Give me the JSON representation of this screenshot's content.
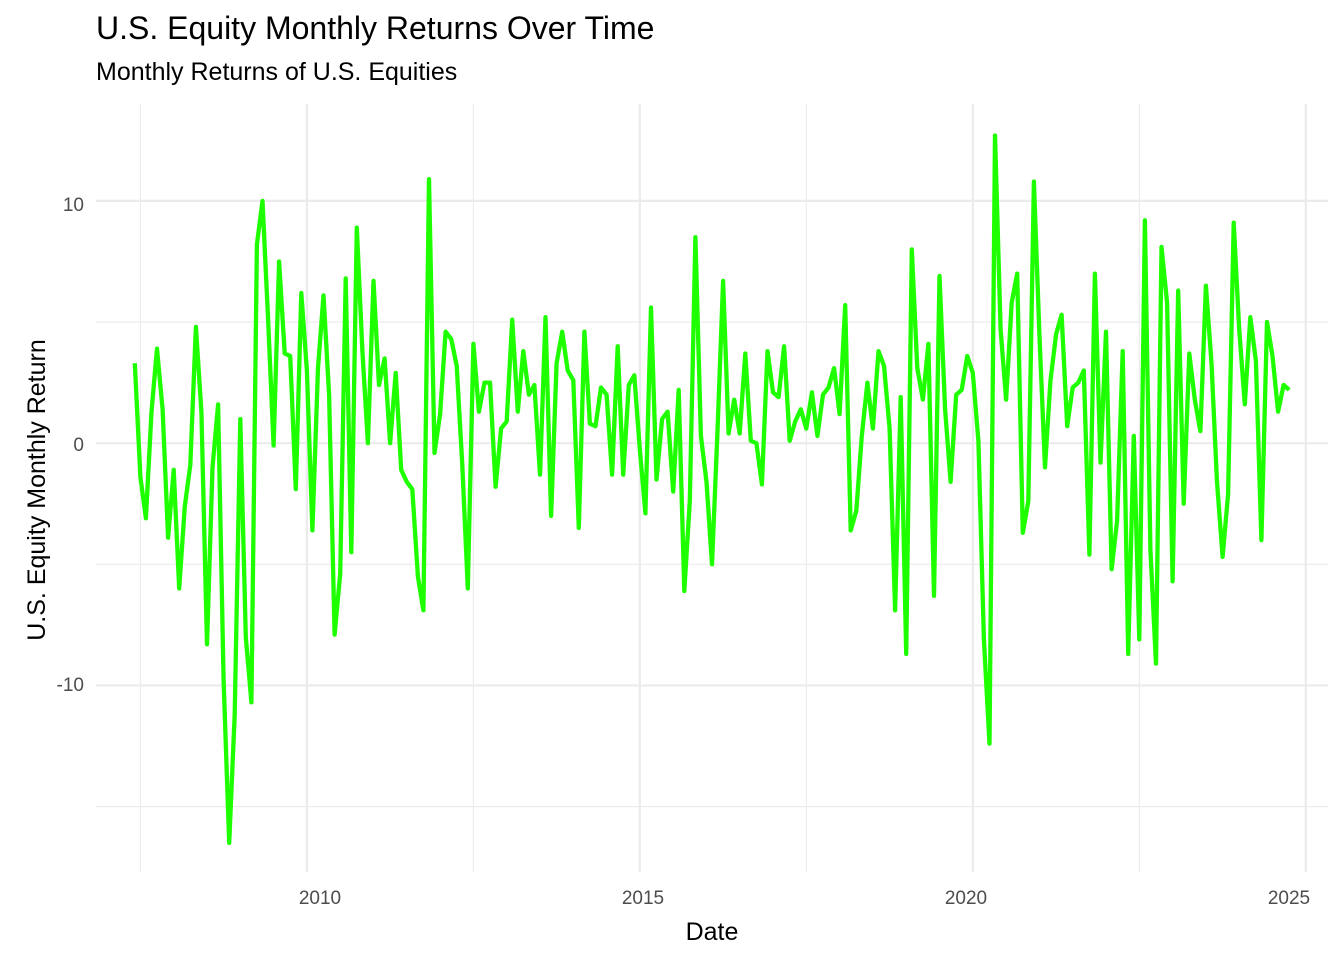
{
  "chart_data": {
    "type": "line",
    "title": "U.S. Equity Monthly Returns Over Time",
    "subtitle": "Monthly Returns of U.S. Equities",
    "xlabel": "Date",
    "ylabel": "U.S. Equity Monthly Return",
    "x_ticks": [
      "2010",
      "2015",
      "2020",
      "2025"
    ],
    "y_ticks": [
      "-10",
      "0",
      "10"
    ],
    "xlim": [
      "2006-11-01",
      "2025-05-01"
    ],
    "ylim": [
      -17.7,
      14.0
    ],
    "grid": true,
    "line_color": "#1eff00",
    "series": [
      {
        "values": [
          {
            "x": "2007-06",
            "y": 3.3
          },
          {
            "x": "2007-07",
            "y": -1.4
          },
          {
            "x": "2007-08",
            "y": -3.1
          },
          {
            "x": "2007-09",
            "y": 1.3
          },
          {
            "x": "2007-10",
            "y": 3.9
          },
          {
            "x": "2007-11",
            "y": 1.4
          },
          {
            "x": "2007-12",
            "y": -3.9
          },
          {
            "x": "2008-01",
            "y": -1.1
          },
          {
            "x": "2008-02",
            "y": -6.0
          },
          {
            "x": "2008-03",
            "y": -2.6
          },
          {
            "x": "2008-04",
            "y": -0.9
          },
          {
            "x": "2008-05",
            "y": 4.8
          },
          {
            "x": "2008-06",
            "y": 1.3
          },
          {
            "x": "2008-07",
            "y": -8.3
          },
          {
            "x": "2008-08",
            "y": -1.0
          },
          {
            "x": "2008-09",
            "y": 1.6
          },
          {
            "x": "2008-10",
            "y": -9.8
          },
          {
            "x": "2008-11",
            "y": -16.5
          },
          {
            "x": "2008-12",
            "y": -11.2
          },
          {
            "x": "2009-01",
            "y": 1.0
          },
          {
            "x": "2009-02",
            "y": -8.0
          },
          {
            "x": "2009-03",
            "y": -10.7
          },
          {
            "x": "2009-04",
            "y": 8.2
          },
          {
            "x": "2009-05",
            "y": 10.0
          },
          {
            "x": "2009-06",
            "y": 5.2
          },
          {
            "x": "2009-07",
            "y": -0.1
          },
          {
            "x": "2009-08",
            "y": 7.5
          },
          {
            "x": "2009-09",
            "y": 3.7
          },
          {
            "x": "2009-10",
            "y": 3.6
          },
          {
            "x": "2009-11",
            "y": -1.9
          },
          {
            "x": "2009-12",
            "y": 6.2
          },
          {
            "x": "2010-01",
            "y": 3.0
          },
          {
            "x": "2010-02",
            "y": -3.6
          },
          {
            "x": "2010-03",
            "y": 3.1
          },
          {
            "x": "2010-04",
            "y": 6.1
          },
          {
            "x": "2010-05",
            "y": 2.0
          },
          {
            "x": "2010-06",
            "y": -7.9
          },
          {
            "x": "2010-07",
            "y": -5.4
          },
          {
            "x": "2010-08",
            "y": 6.8
          },
          {
            "x": "2010-09",
            "y": -4.5
          },
          {
            "x": "2010-10",
            "y": 8.9
          },
          {
            "x": "2010-11",
            "y": 3.8
          },
          {
            "x": "2010-12",
            "y": 0.0
          },
          {
            "x": "2011-01",
            "y": 6.7
          },
          {
            "x": "2011-02",
            "y": 2.4
          },
          {
            "x": "2011-03",
            "y": 3.5
          },
          {
            "x": "2011-04",
            "y": 0.0
          },
          {
            "x": "2011-05",
            "y": 2.9
          },
          {
            "x": "2011-06",
            "y": -1.1
          },
          {
            "x": "2011-07",
            "y": -1.6
          },
          {
            "x": "2011-08",
            "y": -1.9
          },
          {
            "x": "2011-09",
            "y": -5.5
          },
          {
            "x": "2011-10",
            "y": -6.9
          },
          {
            "x": "2011-11",
            "y": 10.9
          },
          {
            "x": "2011-12",
            "y": -0.4
          },
          {
            "x": "2012-01",
            "y": 1.2
          },
          {
            "x": "2012-02",
            "y": 4.6
          },
          {
            "x": "2012-03",
            "y": 4.3
          },
          {
            "x": "2012-04",
            "y": 3.2
          },
          {
            "x": "2012-05",
            "y": -0.9
          },
          {
            "x": "2012-06",
            "y": -6.0
          },
          {
            "x": "2012-07",
            "y": 4.1
          },
          {
            "x": "2012-08",
            "y": 1.3
          },
          {
            "x": "2012-09",
            "y": 2.5
          },
          {
            "x": "2012-10",
            "y": 2.5
          },
          {
            "x": "2012-11",
            "y": -1.8
          },
          {
            "x": "2012-12",
            "y": 0.6
          },
          {
            "x": "2013-01",
            "y": 0.9
          },
          {
            "x": "2013-02",
            "y": 5.1
          },
          {
            "x": "2013-03",
            "y": 1.3
          },
          {
            "x": "2013-04",
            "y": 3.8
          },
          {
            "x": "2013-05",
            "y": 2.0
          },
          {
            "x": "2013-06",
            "y": 2.4
          },
          {
            "x": "2013-07",
            "y": -1.3
          },
          {
            "x": "2013-08",
            "y": 5.2
          },
          {
            "x": "2013-09",
            "y": -3.0
          },
          {
            "x": "2013-10",
            "y": 3.3
          },
          {
            "x": "2013-11",
            "y": 4.6
          },
          {
            "x": "2013-12",
            "y": 3.0
          },
          {
            "x": "2014-01",
            "y": 2.6
          },
          {
            "x": "2014-02",
            "y": -3.5
          },
          {
            "x": "2014-03",
            "y": 4.6
          },
          {
            "x": "2014-04",
            "y": 0.8
          },
          {
            "x": "2014-05",
            "y": 0.7
          },
          {
            "x": "2014-06",
            "y": 2.3
          },
          {
            "x": "2014-07",
            "y": 2.0
          },
          {
            "x": "2014-08",
            "y": -1.3
          },
          {
            "x": "2014-09",
            "y": 4.0
          },
          {
            "x": "2014-10",
            "y": -1.3
          },
          {
            "x": "2014-11",
            "y": 2.4
          },
          {
            "x": "2014-12",
            "y": 2.8
          },
          {
            "x": "2015-01",
            "y": -0.3
          },
          {
            "x": "2015-02",
            "y": -2.9
          },
          {
            "x": "2015-03",
            "y": 5.6
          },
          {
            "x": "2015-04",
            "y": -1.5
          },
          {
            "x": "2015-05",
            "y": 1.0
          },
          {
            "x": "2015-06",
            "y": 1.3
          },
          {
            "x": "2015-07",
            "y": -2.0
          },
          {
            "x": "2015-08",
            "y": 2.2
          },
          {
            "x": "2015-09",
            "y": -6.1
          },
          {
            "x": "2015-10",
            "y": -2.4
          },
          {
            "x": "2015-11",
            "y": 8.5
          },
          {
            "x": "2015-12",
            "y": 0.3
          },
          {
            "x": "2016-01",
            "y": -1.6
          },
          {
            "x": "2016-02",
            "y": -5.0
          },
          {
            "x": "2016-03",
            "y": 0.5
          },
          {
            "x": "2016-04",
            "y": 6.7
          },
          {
            "x": "2016-05",
            "y": 0.4
          },
          {
            "x": "2016-06",
            "y": 1.8
          },
          {
            "x": "2016-07",
            "y": 0.4
          },
          {
            "x": "2016-08",
            "y": 3.7
          },
          {
            "x": "2016-09",
            "y": 0.1
          },
          {
            "x": "2016-10",
            "y": 0.0
          },
          {
            "x": "2016-11",
            "y": -1.7
          },
          {
            "x": "2016-12",
            "y": 3.8
          },
          {
            "x": "2017-01",
            "y": 2.1
          },
          {
            "x": "2017-02",
            "y": 1.9
          },
          {
            "x": "2017-03",
            "y": 4.0
          },
          {
            "x": "2017-04",
            "y": 0.1
          },
          {
            "x": "2017-05",
            "y": 0.9
          },
          {
            "x": "2017-06",
            "y": 1.4
          },
          {
            "x": "2017-07",
            "y": 0.6
          },
          {
            "x": "2017-08",
            "y": 2.1
          },
          {
            "x": "2017-09",
            "y": 0.3
          },
          {
            "x": "2017-10",
            "y": 2.0
          },
          {
            "x": "2017-11",
            "y": 2.3
          },
          {
            "x": "2017-12",
            "y": 3.1
          },
          {
            "x": "2018-01",
            "y": 1.2
          },
          {
            "x": "2018-02",
            "y": 5.7
          },
          {
            "x": "2018-03",
            "y": -3.6
          },
          {
            "x": "2018-04",
            "y": -2.8
          },
          {
            "x": "2018-05",
            "y": 0.3
          },
          {
            "x": "2018-06",
            "y": 2.5
          },
          {
            "x": "2018-07",
            "y": 0.6
          },
          {
            "x": "2018-08",
            "y": 3.8
          },
          {
            "x": "2018-09",
            "y": 3.2
          },
          {
            "x": "2018-10",
            "y": 0.6
          },
          {
            "x": "2018-11",
            "y": -6.9
          },
          {
            "x": "2018-12",
            "y": 1.9
          },
          {
            "x": "2019-01",
            "y": -8.7
          },
          {
            "x": "2019-02",
            "y": 8.0
          },
          {
            "x": "2019-03",
            "y": 3.1
          },
          {
            "x": "2019-04",
            "y": 1.8
          },
          {
            "x": "2019-05",
            "y": 4.1
          },
          {
            "x": "2019-06",
            "y": -6.3
          },
          {
            "x": "2019-07",
            "y": 6.9
          },
          {
            "x": "2019-08",
            "y": 1.4
          },
          {
            "x": "2019-09",
            "y": -1.6
          },
          {
            "x": "2019-10",
            "y": 2.0
          },
          {
            "x": "2019-11",
            "y": 2.2
          },
          {
            "x": "2019-12",
            "y": 3.6
          },
          {
            "x": "2020-01",
            "y": 2.9
          },
          {
            "x": "2020-02",
            "y": 0.1
          },
          {
            "x": "2020-03",
            "y": -8.1
          },
          {
            "x": "2020-04",
            "y": -12.4
          },
          {
            "x": "2020-05",
            "y": 12.7
          },
          {
            "x": "2020-06",
            "y": 4.7
          },
          {
            "x": "2020-07",
            "y": 1.8
          },
          {
            "x": "2020-08",
            "y": 5.8
          },
          {
            "x": "2020-09",
            "y": 7.0
          },
          {
            "x": "2020-10",
            "y": -3.7
          },
          {
            "x": "2020-11",
            "y": -2.4
          },
          {
            "x": "2020-12",
            "y": 10.8
          },
          {
            "x": "2021-01",
            "y": 4.5
          },
          {
            "x": "2021-02",
            "y": -1.0
          },
          {
            "x": "2021-03",
            "y": 2.6
          },
          {
            "x": "2021-04",
            "y": 4.5
          },
          {
            "x": "2021-05",
            "y": 5.3
          },
          {
            "x": "2021-06",
            "y": 0.7
          },
          {
            "x": "2021-07",
            "y": 2.3
          },
          {
            "x": "2021-08",
            "y": 2.5
          },
          {
            "x": "2021-09",
            "y": 3.0
          },
          {
            "x": "2021-10",
            "y": -4.6
          },
          {
            "x": "2021-11",
            "y": 7.0
          },
          {
            "x": "2021-12",
            "y": -0.8
          },
          {
            "x": "2022-01",
            "y": 4.6
          },
          {
            "x": "2022-02",
            "y": -5.2
          },
          {
            "x": "2022-03",
            "y": -3.2
          },
          {
            "x": "2022-04",
            "y": 3.8
          },
          {
            "x": "2022-05",
            "y": -8.7
          },
          {
            "x": "2022-06",
            "y": 0.3
          },
          {
            "x": "2022-07",
            "y": -8.1
          },
          {
            "x": "2022-08",
            "y": 9.2
          },
          {
            "x": "2022-09",
            "y": -4.4
          },
          {
            "x": "2022-10",
            "y": -9.1
          },
          {
            "x": "2022-11",
            "y": 8.1
          },
          {
            "x": "2022-12",
            "y": 5.8
          },
          {
            "x": "2023-01",
            "y": -5.7
          },
          {
            "x": "2023-02",
            "y": 6.3
          },
          {
            "x": "2023-03",
            "y": -2.5
          },
          {
            "x": "2023-04",
            "y": 3.7
          },
          {
            "x": "2023-05",
            "y": 1.8
          },
          {
            "x": "2023-06",
            "y": 0.5
          },
          {
            "x": "2023-07",
            "y": 6.5
          },
          {
            "x": "2023-08",
            "y": 3.3
          },
          {
            "x": "2023-09",
            "y": -1.6
          },
          {
            "x": "2023-10",
            "y": -4.7
          },
          {
            "x": "2023-11",
            "y": -2.1
          },
          {
            "x": "2023-12",
            "y": 9.1
          },
          {
            "x": "2024-01",
            "y": 4.7
          },
          {
            "x": "2024-02",
            "y": 1.6
          },
          {
            "x": "2024-03",
            "y": 5.2
          },
          {
            "x": "2024-04",
            "y": 3.4
          },
          {
            "x": "2024-05",
            "y": -4.0
          },
          {
            "x": "2024-06",
            "y": 5.0
          },
          {
            "x": "2024-07",
            "y": 3.6
          },
          {
            "x": "2024-08",
            "y": 1.3
          },
          {
            "x": "2024-09",
            "y": 2.4
          },
          {
            "x": "2024-10",
            "y": 2.2
          }
        ]
      }
    ]
  }
}
